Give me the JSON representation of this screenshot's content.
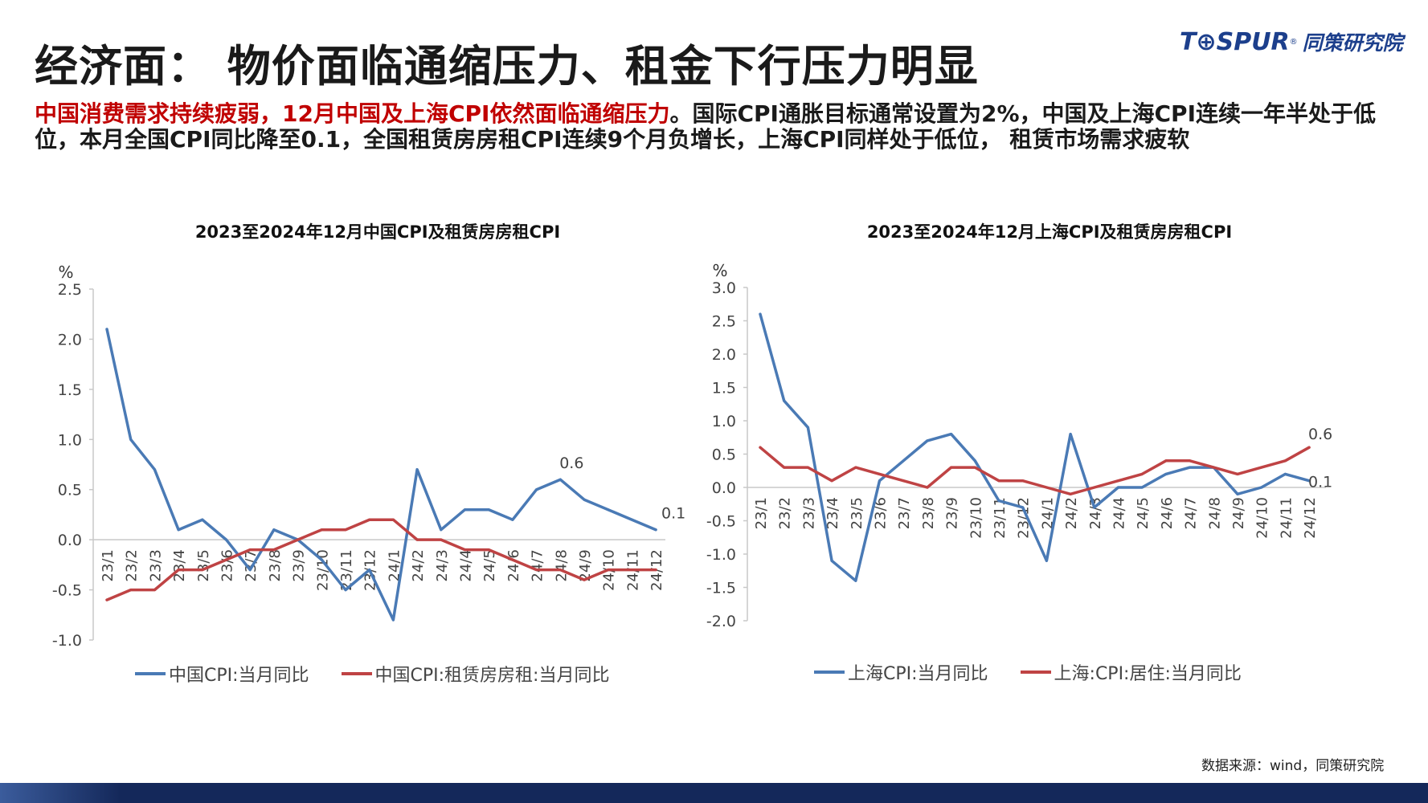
{
  "header": {
    "title": "经济面：  物价面临通缩压力、租金下行压力明显",
    "logo_brand": "T⊕SPUR",
    "logo_reg": "®",
    "logo_cn": "同策研究院"
  },
  "summary": {
    "highlight": "中国消费需求持续疲弱，12月中国及上海CPI依然面临通缩压力",
    "rest": "。国际CPI通胀目标通常设置为2%，中国及上海CPI连续一年半处于低位，本月全国CPI同比降至0.1，全国租赁房房租CPI连续9个月负增长，上海CPI同样处于低位， 租赁市场需求疲软"
  },
  "source": "数据来源：wind，同策研究院",
  "colors": {
    "blue": "#4a7ab5",
    "red": "#bf4344",
    "axis": "#c8c8c8",
    "brand": "#1c3f8c"
  },
  "chart_data": [
    {
      "type": "line",
      "title": "2023至2024年12月中国CPI及租赁房房租CPI",
      "ylabel": "%",
      "ylim": [
        -1.0,
        2.5
      ],
      "yticks": [
        "2.5",
        "2.0",
        "1.5",
        "1.0",
        "0.5",
        "0.0",
        "-0.5",
        "-1.0"
      ],
      "categories": [
        "23/1",
        "23/2",
        "23/3",
        "23/4",
        "23/5",
        "23/6",
        "23/7",
        "23/8",
        "23/9",
        "23/10",
        "23/11",
        "23/12",
        "24/1",
        "24/2",
        "24/3",
        "24/4",
        "24/5",
        "24/6",
        "24/7",
        "24/8",
        "24/9",
        "24/10",
        "24/11",
        "24/12"
      ],
      "series": [
        {
          "name": "中国CPI:当月同比",
          "color": "#4a7ab5",
          "values": [
            2.1,
            1.0,
            0.7,
            0.1,
            0.2,
            0.0,
            -0.3,
            0.1,
            0.0,
            -0.2,
            -0.5,
            -0.3,
            -0.8,
            0.7,
            0.1,
            0.3,
            0.3,
            0.2,
            0.5,
            0.6,
            0.4,
            0.3,
            0.2,
            0.1
          ]
        },
        {
          "name": "中国CPI:租赁房房租:当月同比",
          "color": "#bf4344",
          "values": [
            -0.6,
            -0.5,
            -0.5,
            -0.3,
            -0.3,
            -0.2,
            -0.1,
            -0.1,
            0.0,
            0.1,
            0.1,
            0.2,
            0.2,
            0.0,
            0.0,
            -0.1,
            -0.1,
            -0.2,
            -0.3,
            -0.3,
            -0.4,
            -0.3,
            -0.3,
            -0.3
          ]
        }
      ],
      "annotations": [
        {
          "series": 0,
          "index": 19,
          "text": "0.6"
        },
        {
          "series": 0,
          "index": 23,
          "text": "0.1"
        }
      ],
      "legend": "bottom",
      "grid": false
    },
    {
      "type": "line",
      "title": "2023至2024年12月上海CPI及租赁房房租CPI",
      "ylabel": "%",
      "ylim": [
        -2.0,
        3.0
      ],
      "yticks": [
        "3.0",
        "2.5",
        "2.0",
        "1.5",
        "1.0",
        "0.5",
        "0.0",
        "-0.5",
        "-1.0",
        "-1.5",
        "-2.0"
      ],
      "categories": [
        "23/1",
        "23/2",
        "23/3",
        "23/4",
        "23/5",
        "23/6",
        "23/7",
        "23/8",
        "23/9",
        "23/10",
        "23/11",
        "23/12",
        "24/1",
        "24/2",
        "24/3",
        "24/4",
        "24/5",
        "24/6",
        "24/7",
        "24/8",
        "24/9",
        "24/10",
        "24/11",
        "24/12"
      ],
      "series": [
        {
          "name": "上海CPI:当月同比",
          "color": "#4a7ab5",
          "values": [
            2.6,
            1.3,
            0.9,
            -1.1,
            -1.4,
            0.1,
            0.4,
            0.7,
            0.8,
            0.4,
            -0.2,
            -0.3,
            -1.1,
            0.8,
            -0.3,
            0.0,
            0.0,
            0.2,
            0.3,
            0.3,
            -0.1,
            0.0,
            0.2,
            0.1
          ]
        },
        {
          "name": "上海:CPI:居住:当月同比",
          "color": "#bf4344",
          "values": [
            0.6,
            0.3,
            0.3,
            0.1,
            0.3,
            0.2,
            0.1,
            0.0,
            0.3,
            0.3,
            0.1,
            0.1,
            0.0,
            -0.1,
            0.0,
            0.1,
            0.2,
            0.4,
            0.4,
            0.3,
            0.2,
            0.3,
            0.4,
            0.6
          ]
        }
      ],
      "annotations": [
        {
          "series": 1,
          "index": 23,
          "text": "0.6"
        },
        {
          "series": 0,
          "index": 23,
          "text": "0.1"
        }
      ],
      "legend": "bottom",
      "grid": false
    }
  ]
}
